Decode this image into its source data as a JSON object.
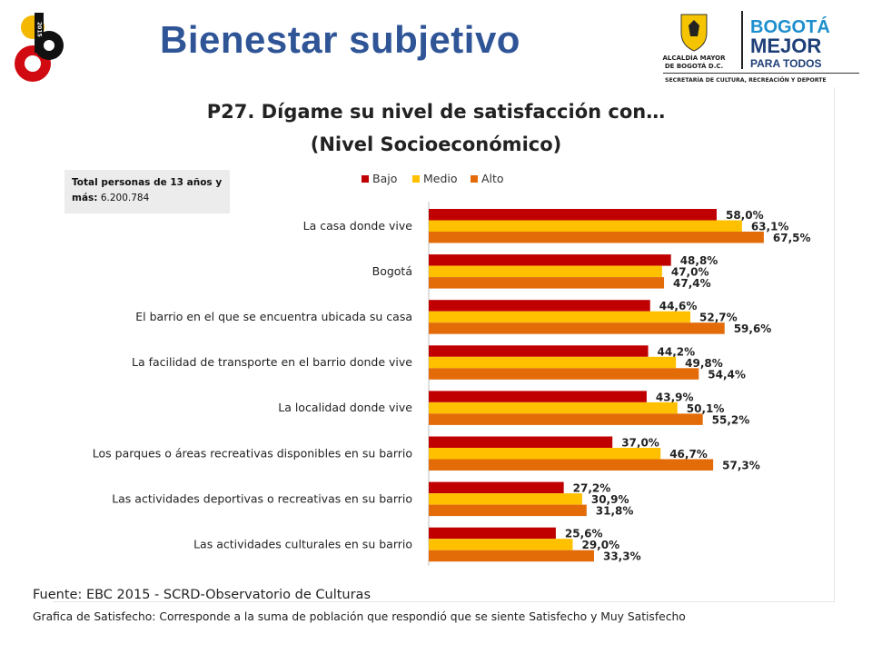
{
  "slide": {
    "title": "Bienestar subjetivo",
    "logo_text": "2015",
    "org_name_line1": "ALCALDÍA MAYOR",
    "org_name_line2": "DE BOGOTÁ D.C.",
    "brand_line1": "BOGOTÁ",
    "brand_line2": "MEJOR",
    "brand_line3": "PARA TODOS",
    "department": "SECRETARÍA DE CULTURA, RECREACIÓN Y DEPORTE"
  },
  "total_box": {
    "label": "Total personas de 13 años y más:",
    "value": "6.200.784"
  },
  "footer": {
    "source": "Fuente: EBC 2015 - SCRD-Observatorio de Culturas",
    "note": "Grafica de Satisfecho: Corresponde a la suma de población que respondió que se siente Satisfecho y Muy Satisfecho"
  },
  "colors": {
    "title": "#2f5597",
    "bajo": "#c00000",
    "medio": "#ffc000",
    "alto": "#e36c09"
  },
  "chart_data": {
    "type": "bar",
    "orientation": "horizontal",
    "title": "P27. Dígame su nivel de satisfacción con…",
    "subtitle": "(Nivel Socioeconómico)",
    "legend_position": "top",
    "xlim": [
      0,
      100
    ],
    "grid": false,
    "categories": [
      "La casa donde vive",
      "Bogotá",
      "El barrio en el que se encuentra ubicada su casa",
      "La facilidad de transporte en el barrio donde vive",
      "La localidad donde vive",
      "Los parques o áreas recreativas disponibles en su barrio",
      "Las actividades deportivas o recreativas en su barrio",
      "Las actividades culturales en su barrio"
    ],
    "series": [
      {
        "name": "Bajo",
        "color": "#c00000",
        "values": [
          58.0,
          48.8,
          44.6,
          44.2,
          43.9,
          37.0,
          27.2,
          25.6
        ],
        "labels": [
          "58,0%",
          "48,8%",
          "44,6%",
          "44,2%",
          "43,9%",
          "37,0%",
          "27,2%",
          "25,6%"
        ]
      },
      {
        "name": "Medio",
        "color": "#ffc000",
        "values": [
          63.1,
          47.0,
          52.7,
          49.8,
          50.1,
          46.7,
          30.9,
          29.0
        ],
        "labels": [
          "63,1%",
          "47,0%",
          "52,7%",
          "49,8%",
          "50,1%",
          "46,7%",
          "30,9%",
          "29,0%"
        ]
      },
      {
        "name": "Alto",
        "color": "#e36c09",
        "values": [
          67.5,
          47.4,
          59.6,
          54.4,
          55.2,
          57.3,
          31.8,
          33.3
        ],
        "labels": [
          "67,5%",
          "47,4%",
          "59,6%",
          "54,4%",
          "55,2%",
          "57,3%",
          "31,8%",
          "33,3%"
        ]
      }
    ]
  }
}
